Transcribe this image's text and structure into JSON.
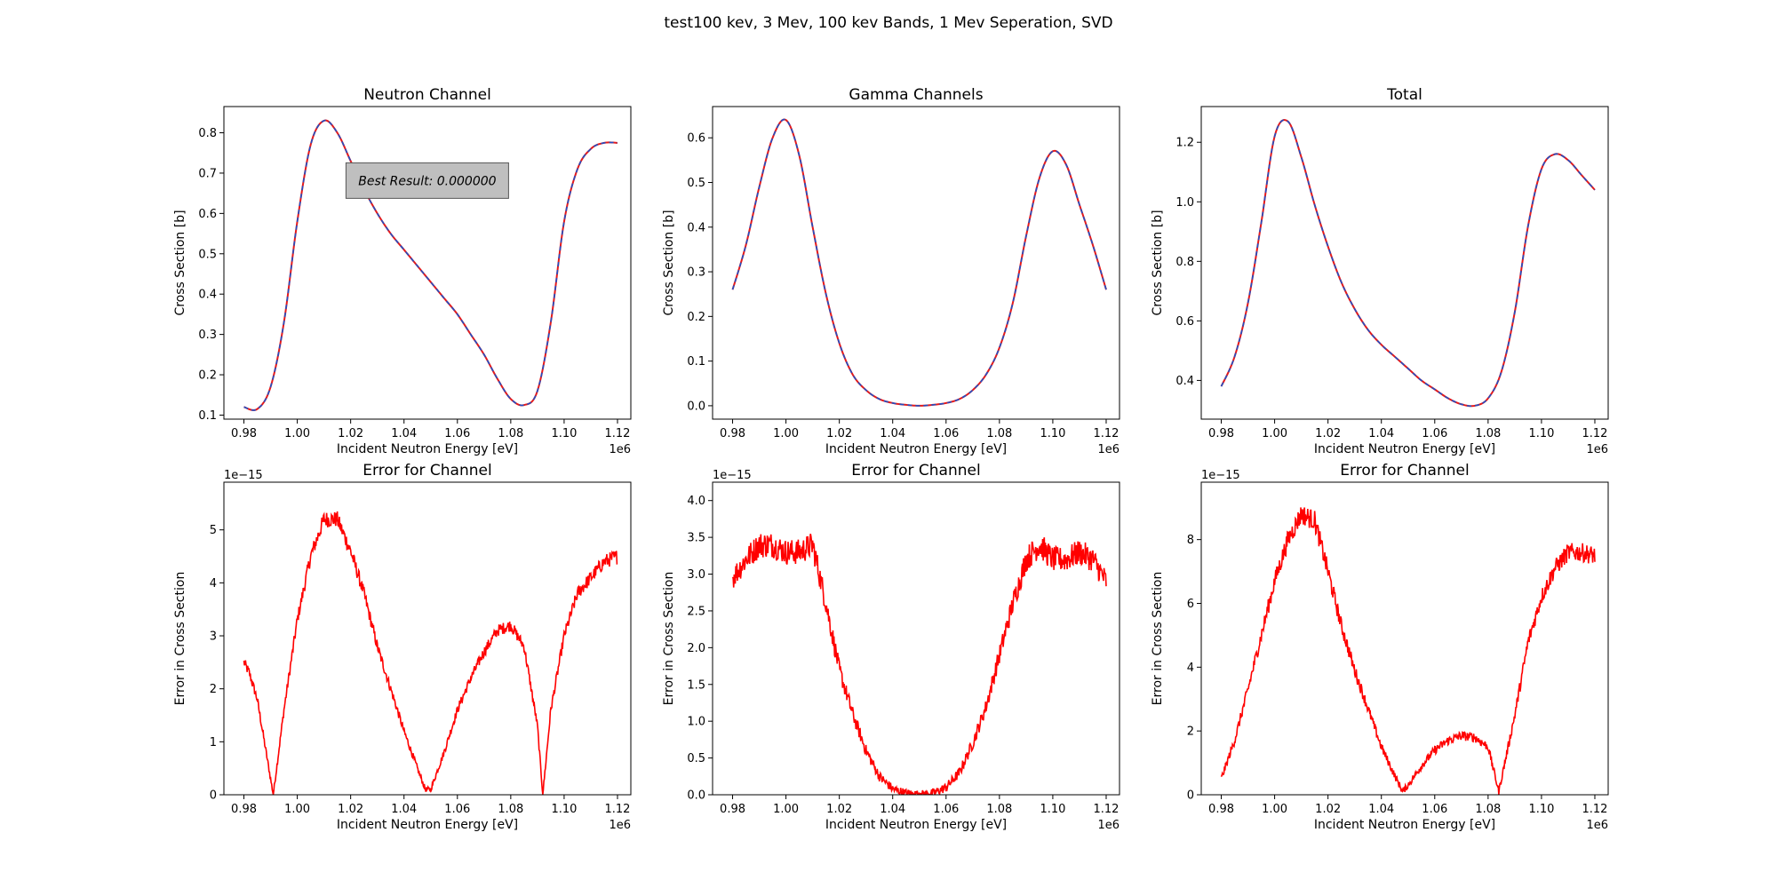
{
  "figure": {
    "suptitle": "test100 kev, 3 Mev, 100 kev Bands, 1 Mev Seperation, SVD"
  },
  "colors": {
    "fit": "#e41a1c",
    "reference": "#1f4fc4",
    "error": "#ff0000"
  },
  "chart_data": [
    {
      "type": "line",
      "title": "Neutron Channel",
      "xlabel": "Incident Neutron Energy [eV]",
      "ylabel": "Cross Section [b]",
      "x_offset_label": "1e6",
      "xlim": [
        0.9725,
        1.125
      ],
      "ylim": [
        0.09,
        0.865
      ],
      "xticks": [
        0.98,
        1.0,
        1.02,
        1.04,
        1.06,
        1.08,
        1.1,
        1.12
      ],
      "xtick_labels": [
        "0.98",
        "1.00",
        "1.02",
        "1.04",
        "1.06",
        "1.08",
        "1.10",
        "1.12"
      ],
      "yticks": [
        0.1,
        0.2,
        0.3,
        0.4,
        0.5,
        0.6,
        0.7,
        0.8
      ],
      "ytick_labels": [
        "0.1",
        "0.2",
        "0.3",
        "0.4",
        "0.5",
        "0.6",
        "0.7",
        "0.8"
      ],
      "annotation": "Best Result: 0.000000",
      "x": [
        0.98,
        0.985,
        0.99,
        0.995,
        1.0,
        1.005,
        1.01,
        1.015,
        1.02,
        1.025,
        1.03,
        1.035,
        1.04,
        1.045,
        1.05,
        1.055,
        1.06,
        1.065,
        1.07,
        1.075,
        1.08,
        1.085,
        1.09,
        1.095,
        1.1,
        1.105,
        1.11,
        1.115,
        1.12
      ],
      "series": [
        {
          "role": "fit",
          "style": "solid",
          "values": [
            0.12,
            0.115,
            0.17,
            0.33,
            0.58,
            0.77,
            0.83,
            0.8,
            0.73,
            0.66,
            0.6,
            0.55,
            0.51,
            0.47,
            0.43,
            0.39,
            0.35,
            0.3,
            0.25,
            0.19,
            0.14,
            0.125,
            0.16,
            0.33,
            0.58,
            0.71,
            0.76,
            0.775,
            0.775
          ]
        },
        {
          "role": "reference",
          "style": "dashed",
          "values": [
            0.12,
            0.115,
            0.17,
            0.33,
            0.58,
            0.77,
            0.83,
            0.8,
            0.73,
            0.66,
            0.6,
            0.55,
            0.51,
            0.47,
            0.43,
            0.39,
            0.35,
            0.3,
            0.25,
            0.19,
            0.14,
            0.125,
            0.16,
            0.33,
            0.58,
            0.71,
            0.76,
            0.775,
            0.775
          ]
        }
      ]
    },
    {
      "type": "line",
      "title": "Gamma Channels",
      "xlabel": "Incident Neutron Energy [eV]",
      "ylabel": "Cross Section [b]",
      "x_offset_label": "1e6",
      "xlim": [
        0.9725,
        1.125
      ],
      "ylim": [
        -0.03,
        0.67
      ],
      "xticks": [
        0.98,
        1.0,
        1.02,
        1.04,
        1.06,
        1.08,
        1.1,
        1.12
      ],
      "xtick_labels": [
        "0.98",
        "1.00",
        "1.02",
        "1.04",
        "1.06",
        "1.08",
        "1.10",
        "1.12"
      ],
      "yticks": [
        0.0,
        0.1,
        0.2,
        0.3,
        0.4,
        0.5,
        0.6
      ],
      "ytick_labels": [
        "0.0",
        "0.1",
        "0.2",
        "0.3",
        "0.4",
        "0.5",
        "0.6"
      ],
      "x": [
        0.98,
        0.985,
        0.99,
        0.995,
        1.0,
        1.005,
        1.01,
        1.015,
        1.02,
        1.025,
        1.03,
        1.035,
        1.04,
        1.045,
        1.05,
        1.055,
        1.06,
        1.065,
        1.07,
        1.075,
        1.08,
        1.085,
        1.09,
        1.095,
        1.1,
        1.105,
        1.11,
        1.115,
        1.12
      ],
      "series": [
        {
          "role": "fit",
          "style": "solid",
          "values": [
            0.26,
            0.36,
            0.49,
            0.6,
            0.64,
            0.56,
            0.4,
            0.25,
            0.14,
            0.07,
            0.035,
            0.015,
            0.006,
            0.002,
            0.0,
            0.002,
            0.006,
            0.015,
            0.035,
            0.07,
            0.13,
            0.23,
            0.38,
            0.51,
            0.57,
            0.54,
            0.45,
            0.36,
            0.26
          ]
        },
        {
          "role": "reference",
          "style": "dashed",
          "values": [
            0.26,
            0.36,
            0.49,
            0.6,
            0.64,
            0.56,
            0.4,
            0.25,
            0.14,
            0.07,
            0.035,
            0.015,
            0.006,
            0.002,
            0.0,
            0.002,
            0.006,
            0.015,
            0.035,
            0.07,
            0.13,
            0.23,
            0.38,
            0.51,
            0.57,
            0.54,
            0.45,
            0.36,
            0.26
          ]
        }
      ]
    },
    {
      "type": "line",
      "title": "Total",
      "xlabel": "Incident Neutron Energy [eV]",
      "ylabel": "Cross Section [b]",
      "x_offset_label": "1e6",
      "xlim": [
        0.9725,
        1.125
      ],
      "ylim": [
        0.27,
        1.32
      ],
      "xticks": [
        0.98,
        1.0,
        1.02,
        1.04,
        1.06,
        1.08,
        1.1,
        1.12
      ],
      "xtick_labels": [
        "0.98",
        "1.00",
        "1.02",
        "1.04",
        "1.06",
        "1.08",
        "1.10",
        "1.12"
      ],
      "yticks": [
        0.4,
        0.6,
        0.8,
        1.0,
        1.2
      ],
      "ytick_labels": [
        "0.4",
        "0.6",
        "0.8",
        "1.0",
        "1.2"
      ],
      "x": [
        0.98,
        0.985,
        0.99,
        0.995,
        1.0,
        1.005,
        1.01,
        1.015,
        1.02,
        1.025,
        1.03,
        1.035,
        1.04,
        1.045,
        1.05,
        1.055,
        1.06,
        1.065,
        1.07,
        1.075,
        1.08,
        1.085,
        1.09,
        1.095,
        1.1,
        1.105,
        1.11,
        1.115,
        1.12
      ],
      "series": [
        {
          "role": "fit",
          "style": "solid",
          "values": [
            0.38,
            0.48,
            0.66,
            0.93,
            1.22,
            1.27,
            1.15,
            0.99,
            0.85,
            0.73,
            0.64,
            0.57,
            0.52,
            0.48,
            0.44,
            0.4,
            0.37,
            0.34,
            0.32,
            0.315,
            0.34,
            0.43,
            0.63,
            0.92,
            1.11,
            1.16,
            1.14,
            1.09,
            1.04
          ]
        },
        {
          "role": "reference",
          "style": "dashed",
          "values": [
            0.38,
            0.48,
            0.66,
            0.93,
            1.22,
            1.27,
            1.15,
            0.99,
            0.85,
            0.73,
            0.64,
            0.57,
            0.52,
            0.48,
            0.44,
            0.4,
            0.37,
            0.34,
            0.32,
            0.315,
            0.34,
            0.43,
            0.63,
            0.92,
            1.11,
            1.16,
            1.14,
            1.09,
            1.04
          ]
        }
      ]
    },
    {
      "type": "line",
      "title": "Error for Channel",
      "xlabel": "Incident Neutron Energy [eV]",
      "ylabel": "Error in Cross Section",
      "x_offset_label": "1e6",
      "y_offset_label": "1e−15",
      "xlim": [
        0.9725,
        1.125
      ],
      "ylim": [
        0,
        5.9
      ],
      "xticks": [
        0.98,
        1.0,
        1.02,
        1.04,
        1.06,
        1.08,
        1.1,
        1.12
      ],
      "xtick_labels": [
        "0.98",
        "1.00",
        "1.02",
        "1.04",
        "1.06",
        "1.08",
        "1.10",
        "1.12"
      ],
      "yticks": [
        0,
        1,
        2,
        3,
        4,
        5
      ],
      "ytick_labels": [
        "0",
        "1",
        "2",
        "3",
        "4",
        "5"
      ],
      "noise": 0.12,
      "x": [
        0.98,
        0.982,
        0.985,
        0.988,
        0.991,
        0.995,
        1.0,
        1.005,
        1.01,
        1.015,
        1.02,
        1.025,
        1.03,
        1.035,
        1.04,
        1.045,
        1.048,
        1.05,
        1.055,
        1.06,
        1.065,
        1.07,
        1.075,
        1.08,
        1.085,
        1.09,
        1.092,
        1.095,
        1.1,
        1.105,
        1.11,
        1.115,
        1.12
      ],
      "series": [
        {
          "role": "error",
          "style": "solid",
          "values": [
            2.5,
            2.3,
            1.8,
            0.9,
            0.0,
            1.6,
            3.3,
            4.5,
            5.2,
            5.2,
            4.6,
            3.8,
            2.8,
            2.0,
            1.2,
            0.5,
            0.1,
            0.1,
            0.8,
            1.6,
            2.2,
            2.7,
            3.1,
            3.2,
            2.8,
            1.3,
            0.0,
            1.6,
            3.0,
            3.8,
            4.1,
            4.4,
            4.5
          ]
        }
      ]
    },
    {
      "type": "line",
      "title": "Error for Channel",
      "xlabel": "Incident Neutron Energy [eV]",
      "ylabel": "Error in Cross Section",
      "x_offset_label": "1e6",
      "y_offset_label": "1e−15",
      "xlim": [
        0.9725,
        1.125
      ],
      "ylim": [
        0,
        4.25
      ],
      "xticks": [
        0.98,
        1.0,
        1.02,
        1.04,
        1.06,
        1.08,
        1.1,
        1.12
      ],
      "xtick_labels": [
        "0.98",
        "1.00",
        "1.02",
        "1.04",
        "1.06",
        "1.08",
        "1.10",
        "1.12"
      ],
      "yticks": [
        0.0,
        0.5,
        1.0,
        1.5,
        2.0,
        2.5,
        3.0,
        3.5,
        4.0
      ],
      "ytick_labels": [
        "0.0",
        "0.5",
        "1.0",
        "1.5",
        "2.0",
        "2.5",
        "3.0",
        "3.5",
        "4.0"
      ],
      "noise": 0.15,
      "x": [
        0.98,
        0.985,
        0.99,
        0.995,
        1.0,
        1.005,
        1.01,
        1.015,
        1.02,
        1.025,
        1.03,
        1.035,
        1.04,
        1.045,
        1.05,
        1.055,
        1.06,
        1.065,
        1.07,
        1.075,
        1.08,
        1.085,
        1.09,
        1.095,
        1.1,
        1.105,
        1.11,
        1.115,
        1.12
      ],
      "series": [
        {
          "role": "error",
          "style": "solid",
          "values": [
            2.95,
            3.2,
            3.4,
            3.4,
            3.3,
            3.3,
            3.4,
            2.6,
            1.7,
            1.1,
            0.6,
            0.25,
            0.08,
            0.02,
            0.0,
            0.02,
            0.1,
            0.3,
            0.7,
            1.2,
            1.9,
            2.6,
            3.2,
            3.4,
            3.2,
            3.2,
            3.3,
            3.2,
            2.9
          ]
        }
      ]
    },
    {
      "type": "line",
      "title": "Error for Channel",
      "xlabel": "Incident Neutron Energy [eV]",
      "ylabel": "Error in Cross Section",
      "x_offset_label": "1e6",
      "y_offset_label": "1e−15",
      "xlim": [
        0.9725,
        1.125
      ],
      "ylim": [
        0,
        9.8
      ],
      "xticks": [
        0.98,
        1.0,
        1.02,
        1.04,
        1.06,
        1.08,
        1.1,
        1.12
      ],
      "xtick_labels": [
        "0.98",
        "1.00",
        "1.02",
        "1.04",
        "1.06",
        "1.08",
        "1.10",
        "1.12"
      ],
      "yticks": [
        0,
        2,
        4,
        6,
        8
      ],
      "ytick_labels": [
        "0",
        "2",
        "4",
        "6",
        "8"
      ],
      "noise": 0.25,
      "x": [
        0.98,
        0.985,
        0.99,
        0.995,
        1.0,
        1.005,
        1.01,
        1.015,
        1.02,
        1.025,
        1.03,
        1.035,
        1.04,
        1.045,
        1.048,
        1.05,
        1.055,
        1.06,
        1.065,
        1.07,
        1.075,
        1.08,
        1.084,
        1.09,
        1.095,
        1.1,
        1.105,
        1.11,
        1.115,
        1.12
      ],
      "series": [
        {
          "role": "error",
          "style": "solid",
          "values": [
            0.5,
            1.7,
            3.3,
            5.0,
            6.7,
            8.0,
            8.8,
            8.6,
            7.0,
            5.3,
            3.9,
            2.7,
            1.5,
            0.6,
            0.1,
            0.3,
            0.9,
            1.4,
            1.7,
            1.85,
            1.8,
            1.5,
            0.1,
            2.5,
            4.8,
            6.2,
            7.1,
            7.6,
            7.6,
            7.5
          ]
        }
      ]
    }
  ]
}
